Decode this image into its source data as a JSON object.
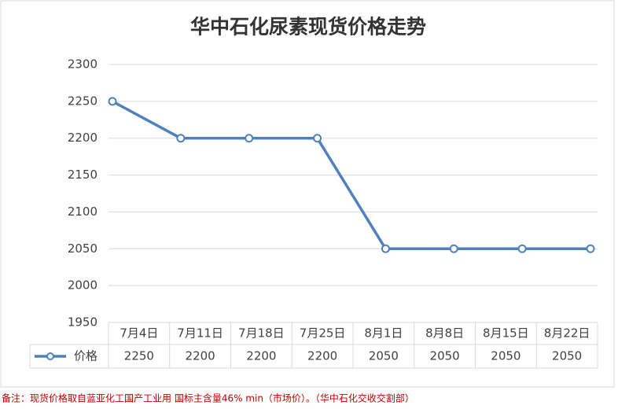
{
  "chart_data": {
    "type": "line",
    "title": "华中石化尿素现货价格走势",
    "categories": [
      "7月4日",
      "7月11日",
      "7月18日",
      "7月25日",
      "8月1日",
      "8月8日",
      "8月15日",
      "8月22日"
    ],
    "series": [
      {
        "name": "价格",
        "color": "#4f81bd",
        "values": [
          2250,
          2200,
          2200,
          2200,
          2050,
          2050,
          2050,
          2050
        ]
      }
    ],
    "ylim": [
      1950,
      2300
    ],
    "yticks": [
      1950,
      2000,
      2050,
      2100,
      2150,
      2200,
      2250,
      2300
    ],
    "grid": true,
    "footnote": "备注：现货价格取自蓝亚化工国产工业用 国标主含量46% min（市场价）。（华中石化交收交割部）"
  }
}
